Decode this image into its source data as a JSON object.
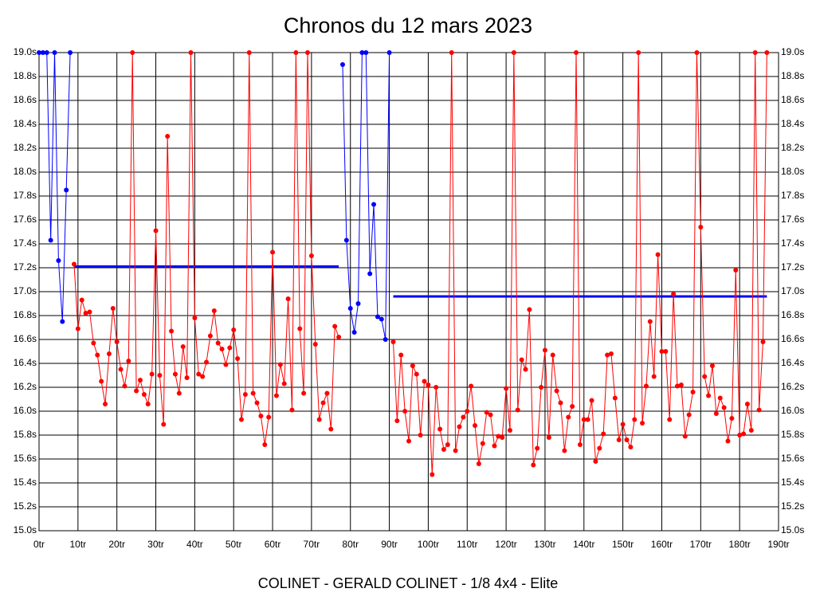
{
  "chart_data": {
    "type": "line",
    "title": "Chronos du 12 mars 2023",
    "footer": "COLINET - GERALD COLINET - 1/8 4x4 - Elite",
    "xlim": [
      0,
      190
    ],
    "ylim": [
      15.0,
      19.0
    ],
    "grid": true,
    "xticks": [
      {
        "value": 0,
        "label": "0tr"
      },
      {
        "value": 10,
        "label": "10tr"
      },
      {
        "value": 20,
        "label": "20tr"
      },
      {
        "value": 30,
        "label": "30tr"
      },
      {
        "value": 40,
        "label": "40tr"
      },
      {
        "value": 50,
        "label": "50tr"
      },
      {
        "value": 60,
        "label": "60tr"
      },
      {
        "value": 70,
        "label": "70tr"
      },
      {
        "value": 80,
        "label": "80tr"
      },
      {
        "value": 90,
        "label": "90tr"
      },
      {
        "value": 100,
        "label": "100tr"
      },
      {
        "value": 110,
        "label": "110tr"
      },
      {
        "value": 120,
        "label": "120tr"
      },
      {
        "value": 130,
        "label": "130tr"
      },
      {
        "value": 140,
        "label": "140tr"
      },
      {
        "value": 150,
        "label": "150tr"
      },
      {
        "value": 160,
        "label": "160tr"
      },
      {
        "value": 170,
        "label": "170tr"
      },
      {
        "value": 180,
        "label": "180tr"
      },
      {
        "value": 190,
        "label": "190tr"
      }
    ],
    "yticks": [
      {
        "value": 15.0,
        "label": "15.0s"
      },
      {
        "value": 15.2,
        "label": "15.2s"
      },
      {
        "value": 15.4,
        "label": "15.4s"
      },
      {
        "value": 15.6,
        "label": "15.6s"
      },
      {
        "value": 15.8,
        "label": "15.8s"
      },
      {
        "value": 16.0,
        "label": "16.0s"
      },
      {
        "value": 16.2,
        "label": "16.2s"
      },
      {
        "value": 16.4,
        "label": "16.4s"
      },
      {
        "value": 16.6,
        "label": "16.6s"
      },
      {
        "value": 16.8,
        "label": "16.8s"
      },
      {
        "value": 17.0,
        "label": "17.0s"
      },
      {
        "value": 17.2,
        "label": "17.2s"
      },
      {
        "value": 17.4,
        "label": "17.4s"
      },
      {
        "value": 17.6,
        "label": "17.6s"
      },
      {
        "value": 17.8,
        "label": "17.8s"
      },
      {
        "value": 18.0,
        "label": "18.0s"
      },
      {
        "value": 18.2,
        "label": "18.2s"
      },
      {
        "value": 18.4,
        "label": "18.4s"
      },
      {
        "value": 18.6,
        "label": "18.6s"
      },
      {
        "value": 18.8,
        "label": "18.8s"
      },
      {
        "value": 19.0,
        "label": "19.0s"
      }
    ],
    "series": [
      {
        "color": "#0000ff",
        "x": [
          0,
          1,
          2,
          3,
          4,
          5,
          6,
          7,
          8
        ],
        "values": [
          19.0,
          19.0,
          19.0,
          17.43,
          19.0,
          17.26,
          16.75,
          17.85,
          19.0
        ]
      },
      {
        "color": "#ff0000",
        "x": [
          9,
          10,
          11,
          12,
          13,
          14,
          15,
          16,
          17,
          18,
          19,
          20,
          21,
          22,
          23,
          24,
          25,
          26,
          27,
          28,
          29,
          30,
          31,
          32,
          33,
          34,
          35,
          36,
          37,
          38,
          39,
          40,
          41,
          42,
          43,
          44,
          45,
          46,
          47,
          48,
          49,
          50,
          51,
          52,
          53,
          54,
          55,
          56,
          57,
          58,
          59,
          60,
          61,
          62,
          63,
          64,
          65,
          66,
          67,
          68,
          69,
          70,
          71,
          72,
          73,
          74,
          75,
          76,
          77
        ],
        "values": [
          17.23,
          16.69,
          16.93,
          16.82,
          16.83,
          16.57,
          16.47,
          16.25,
          16.06,
          16.48,
          16.86,
          16.58,
          16.35,
          16.21,
          16.42,
          19.0,
          16.17,
          16.26,
          16.14,
          16.06,
          16.31,
          17.51,
          16.3,
          15.89,
          18.3,
          16.67,
          16.31,
          16.15,
          16.54,
          16.28,
          19.0,
          16.78,
          16.31,
          16.29,
          16.41,
          16.63,
          16.84,
          16.57,
          16.52,
          16.39,
          16.53,
          16.68,
          16.44,
          15.93,
          16.14,
          19.0,
          16.15,
          16.07,
          15.96,
          15.72,
          15.95,
          17.33,
          16.13,
          16.39,
          16.23,
          16.94,
          16.01,
          19.0,
          16.69,
          16.15,
          19.0,
          17.3,
          16.56,
          15.93,
          16.07,
          16.15,
          15.85,
          16.71,
          16.62
        ]
      },
      {
        "color": "#0000ff",
        "x": [
          78,
          79,
          80,
          81,
          82,
          83,
          84,
          85,
          86,
          87,
          88,
          89,
          90
        ],
        "values": [
          18.9,
          17.43,
          16.86,
          16.66,
          16.9,
          19.0,
          19.0,
          17.15,
          17.73,
          16.79,
          16.77,
          16.6,
          19.0
        ]
      },
      {
        "color": "#ff0000",
        "x": [
          91,
          92,
          93,
          94,
          95,
          96,
          97,
          98,
          99,
          100,
          101,
          102,
          103,
          104,
          105,
          106,
          107,
          108,
          109,
          110,
          111,
          112,
          113,
          114,
          115,
          116,
          117,
          118,
          119,
          120,
          121,
          122,
          123,
          124,
          125,
          126,
          127,
          128,
          129,
          130,
          131,
          132,
          133,
          134,
          135,
          136,
          137,
          138,
          139,
          140,
          141,
          142,
          143,
          144,
          145,
          146,
          147,
          148,
          149,
          150,
          151,
          152,
          153,
          154,
          155,
          156,
          157,
          158,
          159,
          160,
          161,
          162,
          163,
          164,
          165,
          166,
          167,
          168,
          169,
          170,
          171,
          172,
          173,
          174,
          175,
          176,
          177,
          178,
          179,
          180,
          181,
          182,
          183,
          184,
          185,
          186,
          187
        ],
        "values": [
          16.58,
          15.92,
          16.47,
          16.0,
          15.75,
          16.38,
          16.31,
          15.8,
          16.25,
          16.22,
          15.47,
          16.2,
          15.85,
          15.68,
          15.72,
          19.0,
          15.67,
          15.87,
          15.95,
          16.0,
          16.21,
          15.88,
          15.56,
          15.73,
          15.99,
          15.97,
          15.71,
          15.79,
          15.78,
          16.19,
          15.84,
          19.0,
          16.01,
          16.43,
          16.35,
          16.85,
          15.55,
          15.69,
          16.2,
          16.51,
          15.78,
          16.47,
          16.17,
          16.07,
          15.67,
          15.95,
          16.04,
          19.0,
          15.72,
          15.93,
          15.93,
          16.09,
          15.58,
          15.69,
          15.81,
          16.47,
          16.48,
          16.11,
          15.76,
          15.89,
          15.76,
          15.7,
          15.93,
          19.0,
          15.9,
          16.21,
          16.75,
          16.29,
          17.31,
          16.5,
          16.5,
          15.93,
          16.98,
          16.21,
          16.22,
          15.79,
          15.97,
          16.16,
          19.0,
          17.54,
          16.29,
          16.13,
          16.38,
          15.98,
          16.11,
          16.03,
          15.75,
          15.94,
          17.18,
          15.8,
          15.81,
          16.06,
          15.84,
          19.0,
          16.01,
          16.58,
          19.0
        ]
      }
    ],
    "hlines": [
      {
        "color": "#0000ff",
        "y": 17.21,
        "x": [
          9,
          77
        ]
      },
      {
        "color": "#0000ff",
        "y": 16.96,
        "x": [
          91,
          187
        ]
      }
    ]
  }
}
